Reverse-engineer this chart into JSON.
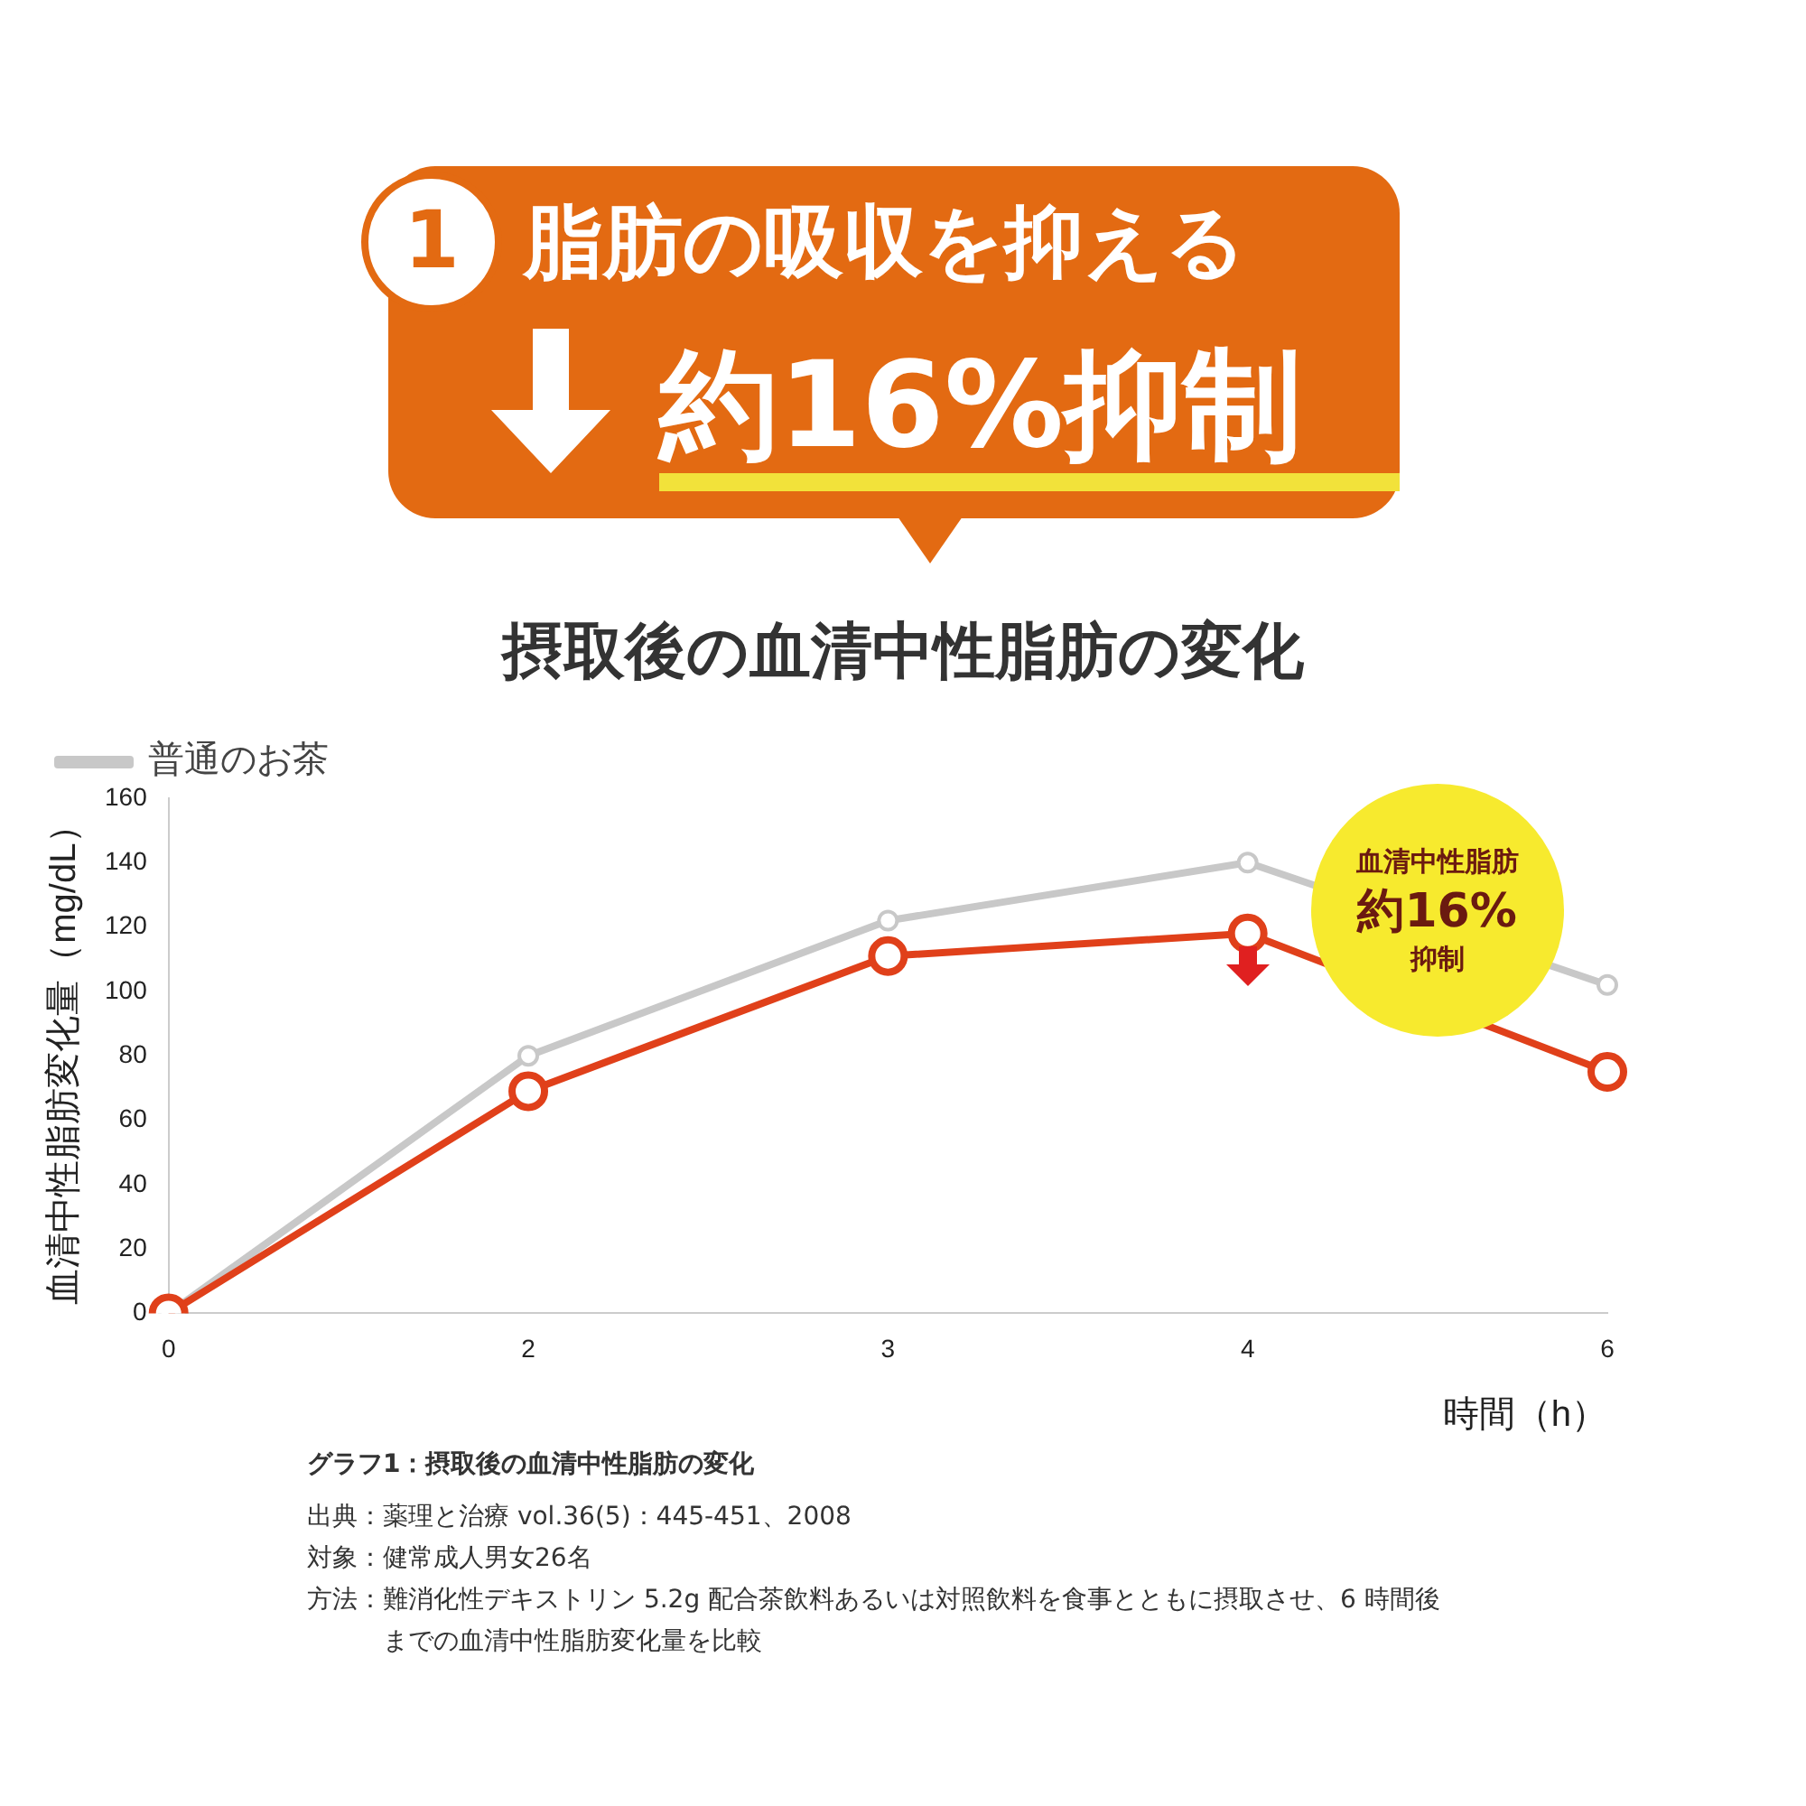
{
  "chart_data": {
    "type": "line",
    "title": "摂取後の血清中性脂肪の変化",
    "xlabel": "時間（h）",
    "ylabel": "血清中性脂肪変化量（mg/dL）",
    "categories": [
      "0",
      "2",
      "3",
      "4",
      "6"
    ],
    "series": [
      {
        "name": "普通のお茶",
        "color": "#c8c8c8",
        "values": [
          0,
          80,
          122,
          140,
          102
        ]
      },
      {
        "color": "#e0401a",
        "values": [
          0,
          69,
          111,
          118,
          75
        ]
      }
    ],
    "ylim": [
      0,
      160
    ],
    "yticks": [
      0,
      20,
      40,
      60,
      80,
      100,
      120,
      140,
      160
    ],
    "grid": false,
    "legend": "top left",
    "marker": "circle",
    "annotations": [
      "1",
      "脂肪の吸収を抑える",
      "約16%抑制",
      "血清中性脂肪",
      "約16%",
      "抑制",
      "グラフ1：摂取後の血清中性脂肪の変化",
      "出典：薬理と治療 vol.36(5)：445-451、2008",
      "対象：健常成人男女26名",
      "方法：難消化性デキストリン 5.2g 配合茶飲料あるいは対照飲料を食事とともに摂取させ、6 時間後までの血清中性脂肪変化量を比較"
    ]
  }
}
